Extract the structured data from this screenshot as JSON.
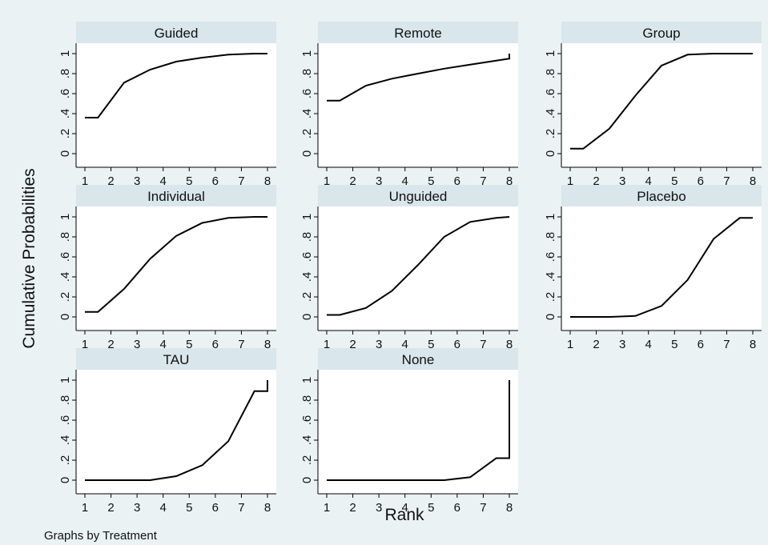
{
  "chart_data": {
    "type": "line",
    "ylabel": "Cumulative Probabilities",
    "xlabel": "Rank",
    "note": "Graphs by Treatment",
    "x_ticks": [
      "1",
      "2",
      "3",
      "4",
      "5",
      "6",
      "7",
      "8"
    ],
    "y_ticks": [
      "0",
      ".2",
      ".4",
      ".6",
      ".8",
      "1"
    ],
    "xlim": [
      1,
      8
    ],
    "ylim": [
      0,
      1
    ],
    "line_color": "#000000",
    "panel_strip_color": "#d9e6eb",
    "background_color": "#eaf2f3",
    "panels": [
      {
        "name": "Guided",
        "x": [
          1,
          1.5,
          2.5,
          3.5,
          4.5,
          5.5,
          6.5,
          7.5,
          8
        ],
        "y": [
          0.36,
          0.36,
          0.71,
          0.84,
          0.92,
          0.96,
          0.99,
          1.0,
          1.0
        ]
      },
      {
        "name": "Remote",
        "x": [
          1,
          1.5,
          2.5,
          3.5,
          4.5,
          5.5,
          6.5,
          7.5,
          8,
          8
        ],
        "y": [
          0.53,
          0.53,
          0.68,
          0.75,
          0.8,
          0.85,
          0.89,
          0.93,
          0.95,
          1.0
        ]
      },
      {
        "name": "Group",
        "x": [
          1,
          1.5,
          2.5,
          3.5,
          4.5,
          5.5,
          6.5,
          7.5,
          8
        ],
        "y": [
          0.05,
          0.05,
          0.25,
          0.58,
          0.88,
          0.99,
          1.0,
          1.0,
          1.0
        ]
      },
      {
        "name": "Individual",
        "x": [
          1,
          1.5,
          2.5,
          3.5,
          4.5,
          5.5,
          6.5,
          7.5,
          8
        ],
        "y": [
          0.05,
          0.05,
          0.28,
          0.58,
          0.81,
          0.94,
          0.99,
          1.0,
          1.0
        ]
      },
      {
        "name": "Unguided",
        "x": [
          1,
          1.5,
          2.5,
          3.5,
          4.5,
          5.5,
          6.5,
          7.5,
          8
        ],
        "y": [
          0.02,
          0.02,
          0.09,
          0.26,
          0.52,
          0.8,
          0.95,
          0.99,
          1.0
        ]
      },
      {
        "name": "Placebo",
        "x": [
          1,
          1.5,
          2.5,
          3.5,
          4.5,
          5.5,
          6.5,
          7.5,
          8
        ],
        "y": [
          0.0,
          0.0,
          0.0,
          0.01,
          0.11,
          0.37,
          0.78,
          0.99,
          0.99
        ]
      },
      {
        "name": "TAU",
        "x": [
          1,
          1.5,
          2.5,
          3.5,
          4.5,
          5.5,
          6.5,
          7.5,
          8,
          8
        ],
        "y": [
          0.0,
          0.0,
          0.0,
          0.0,
          0.04,
          0.15,
          0.39,
          0.89,
          0.89,
          1.0
        ]
      },
      {
        "name": "None",
        "x": [
          1,
          1.5,
          2.5,
          3.5,
          4.5,
          5.5,
          6.5,
          7.5,
          8,
          8
        ],
        "y": [
          0.0,
          0.0,
          0.0,
          0.0,
          0.0,
          0.0,
          0.03,
          0.22,
          0.22,
          1.0
        ]
      }
    ]
  }
}
